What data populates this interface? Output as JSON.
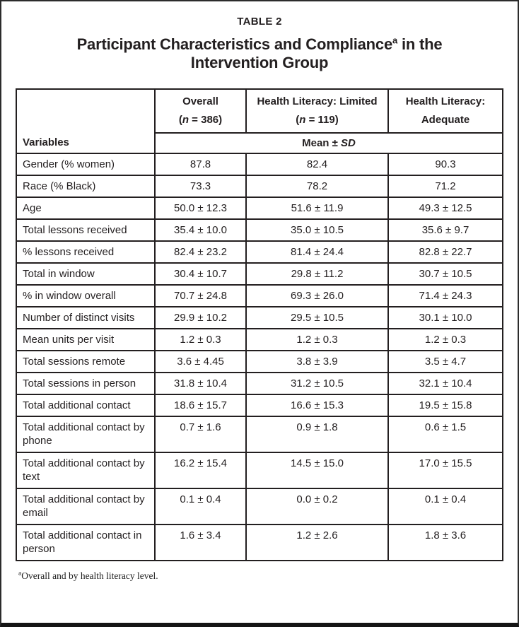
{
  "page": {
    "label": "TABLE 2",
    "title_part1": "Participant Characteristics and Compliance",
    "title_sup": "a",
    "title_part2": " in the",
    "title_line2": "Intervention Group"
  },
  "table": {
    "variables_header": "Variables",
    "subheader": {
      "mean": "Mean ± ",
      "sd": "SD"
    },
    "columns": [
      {
        "line1": "Overall",
        "line2_pre": "(",
        "line2_var": "n",
        "line2_post": " = 386)"
      },
      {
        "line1": "Health Literacy: Limited",
        "line2_pre": "(",
        "line2_var": "n",
        "line2_post": " = 119)"
      },
      {
        "line1": "Health Literacy:",
        "line2": "Adequate"
      }
    ],
    "rows": [
      {
        "variable": "Gender (% women)",
        "values": [
          "87.8",
          "82.4",
          "90.3"
        ]
      },
      {
        "variable": "Race (% Black)",
        "values": [
          "73.3",
          "78.2",
          "71.2"
        ]
      },
      {
        "variable": "Age",
        "values": [
          "50.0 ± 12.3",
          "51.6 ± 11.9",
          "49.3 ± 12.5"
        ]
      },
      {
        "variable": "Total lessons received",
        "values": [
          "35.4 ± 10.0",
          "35.0 ± 10.5",
          "35.6 ± 9.7"
        ]
      },
      {
        "variable": "% lessons received",
        "values": [
          "82.4 ± 23.2",
          "81.4 ± 24.4",
          "82.8 ± 22.7"
        ]
      },
      {
        "variable": "Total in window",
        "values": [
          "30.4 ± 10.7",
          "29.8 ± 11.2",
          "30.7 ± 10.5"
        ]
      },
      {
        "variable": "% in window overall",
        "values": [
          "70.7 ± 24.8",
          "69.3 ± 26.0",
          "71.4 ± 24.3"
        ]
      },
      {
        "variable": "Number of distinct visits",
        "values": [
          "29.9 ± 10.2",
          "29.5 ± 10.5",
          "30.1 ± 10.0"
        ]
      },
      {
        "variable": "Mean units per visit",
        "values": [
          "1.2 ± 0.3",
          "1.2 ± 0.3",
          "1.2 ± 0.3"
        ]
      },
      {
        "variable": "Total sessions remote",
        "values": [
          "3.6 ± 4.45",
          "3.8 ± 3.9",
          "3.5 ± 4.7"
        ]
      },
      {
        "variable": "Total sessions in person",
        "values": [
          "31.8 ± 10.4",
          "31.2 ± 10.5",
          "32.1 ± 10.4"
        ]
      },
      {
        "variable": "Total additional contact",
        "values": [
          "18.6 ± 15.7",
          "16.6 ± 15.3",
          "19.5 ± 15.8"
        ]
      },
      {
        "variable": "Total additional contact by phone",
        "values": [
          "0.7 ± 1.6",
          "0.9 ± 1.8",
          "0.6 ± 1.5"
        ],
        "tall": true
      },
      {
        "variable": "Total additional contact by text",
        "values": [
          "16.2 ± 15.4",
          "14.5 ± 15.0",
          "17.0 ± 15.5"
        ],
        "tall": true
      },
      {
        "variable": "Total additional contact by email",
        "values": [
          "0.1 ± 0.4",
          "0.0 ± 0.2",
          "0.1 ± 0.4"
        ],
        "tall": true
      },
      {
        "variable": "Total additional contact in person",
        "values": [
          "1.6 ± 3.4",
          "1.2 ± 2.6",
          "1.8 ± 3.6"
        ],
        "tall": true
      }
    ]
  },
  "footnote": {
    "sup": "a",
    "text": "Overall and by health literacy level."
  }
}
